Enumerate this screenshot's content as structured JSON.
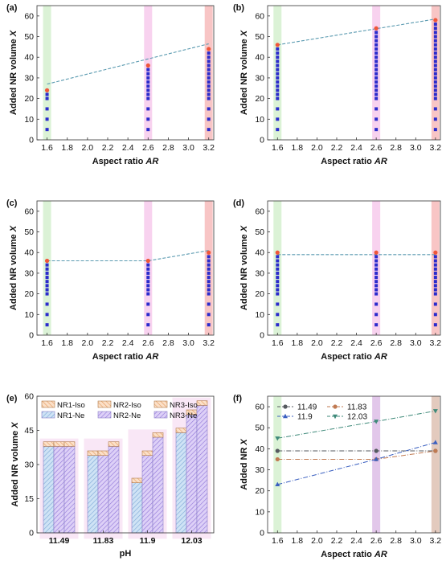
{
  "chart_data": [
    {
      "panel": "(a)",
      "type": "scatter",
      "xlabel": "Aspect ratio ",
      "xlabel_italic": "AR",
      "ylabel": "Added NR volume ",
      "ylabel_italic": "X",
      "xlim": [
        1.5,
        3.25
      ],
      "ylim": [
        0,
        65
      ],
      "xticks": [
        "1.6",
        "1.8",
        "2.0",
        "2.2",
        "2.4",
        "2.6",
        "2.8",
        "3.0",
        "3.2"
      ],
      "yticks": [
        "0",
        "10",
        "20",
        "30",
        "40",
        "50",
        "60"
      ],
      "x_values": [
        1.6,
        2.6,
        3.2
      ],
      "band_colors": [
        "#cfeec8",
        "#f5c3ea",
        "#f6b1b1"
      ],
      "blue_points": [
        {
          "x": 1.6,
          "y": [
            5,
            10,
            15,
            20,
            22
          ]
        },
        {
          "x": 2.6,
          "y": [
            5,
            10,
            15,
            20,
            22,
            24,
            26,
            28,
            30,
            32,
            34
          ]
        },
        {
          "x": 3.2,
          "y": [
            5,
            10,
            15,
            20,
            22,
            24,
            26,
            28,
            30,
            32,
            34,
            36,
            38,
            40,
            42
          ]
        }
      ],
      "marker_points": [
        [
          1.6,
          24
        ],
        [
          2.6,
          36
        ],
        [
          3.2,
          44
        ]
      ],
      "trend_line": [
        [
          1.6,
          27
        ],
        [
          3.2,
          46.5
        ]
      ],
      "colors": {
        "blue": "#2b2bcc",
        "marker": "#f0563a",
        "trend": "#5a9ab0"
      }
    },
    {
      "panel": "(b)",
      "type": "scatter",
      "xlabel": "Aspect ratio ",
      "xlabel_italic": "AR",
      "ylabel": "Added NR volume ",
      "ylabel_italic": "X",
      "xlim": [
        1.5,
        3.25
      ],
      "ylim": [
        0,
        65
      ],
      "xticks": [
        "1.6",
        "1.8",
        "2.0",
        "2.2",
        "2.4",
        "2.6",
        "2.8",
        "3.0",
        "3.2"
      ],
      "yticks": [
        "0",
        "10",
        "20",
        "30",
        "40",
        "50",
        "60"
      ],
      "x_values": [
        1.6,
        2.6,
        3.2
      ],
      "band_colors": [
        "#cfeec8",
        "#f5c3ea",
        "#f6b1b1"
      ],
      "blue_points": [
        {
          "x": 1.6,
          "y": [
            5,
            10,
            15,
            20,
            22,
            24,
            26,
            28,
            30,
            32,
            34,
            36,
            38,
            40,
            42,
            44
          ]
        },
        {
          "x": 2.6,
          "y": [
            5,
            10,
            15,
            20,
            22,
            24,
            26,
            28,
            30,
            32,
            34,
            36,
            38,
            40,
            42,
            44,
            46,
            48,
            50,
            52
          ]
        },
        {
          "x": 3.2,
          "y": [
            5,
            10,
            15,
            20,
            22,
            24,
            26,
            28,
            30,
            32,
            34,
            36,
            38,
            40,
            42,
            44,
            46,
            48,
            50,
            52,
            54,
            56
          ]
        }
      ],
      "marker_points": [
        [
          1.6,
          46
        ],
        [
          2.6,
          54
        ],
        [
          3.2,
          58
        ]
      ],
      "trend_line": [
        [
          1.6,
          46
        ],
        [
          3.2,
          58.5
        ]
      ],
      "colors": {
        "blue": "#2b2bcc",
        "marker": "#f0563a",
        "trend": "#5a9ab0"
      }
    },
    {
      "panel": "(c)",
      "type": "scatter",
      "xlabel": "Aspect ratio ",
      "xlabel_italic": "AR",
      "ylabel": "Added NR volume ",
      "ylabel_italic": "X",
      "xlim": [
        1.5,
        3.25
      ],
      "ylim": [
        0,
        65
      ],
      "xticks": [
        "1.6",
        "1.8",
        "2.0",
        "2.2",
        "2.4",
        "2.6",
        "2.8",
        "3.0",
        "3.2"
      ],
      "yticks": [
        "0",
        "10",
        "20",
        "30",
        "40",
        "50",
        "60"
      ],
      "x_values": [
        1.6,
        2.6,
        3.2
      ],
      "band_colors": [
        "#cfeec8",
        "#f5c3ea",
        "#f6b1b1"
      ],
      "blue_points": [
        {
          "x": 1.6,
          "y": [
            5,
            10,
            15,
            20,
            22,
            24,
            26,
            28,
            30,
            32,
            34
          ]
        },
        {
          "x": 2.6,
          "y": [
            5,
            10,
            15,
            20,
            22,
            24,
            26,
            28,
            30,
            32,
            34
          ]
        },
        {
          "x": 3.2,
          "y": [
            5,
            10,
            15,
            20,
            22,
            24,
            26,
            28,
            30,
            32,
            34,
            36,
            38
          ]
        }
      ],
      "marker_points": [
        [
          1.6,
          36
        ],
        [
          2.6,
          36
        ],
        [
          3.2,
          40
        ]
      ],
      "trend_line": [
        [
          1.6,
          36
        ],
        [
          2.6,
          36
        ],
        [
          3.2,
          41
        ]
      ],
      "colors": {
        "blue": "#2b2bcc",
        "marker": "#f0563a",
        "trend": "#5a9ab0"
      }
    },
    {
      "panel": "(d)",
      "type": "scatter",
      "xlabel": "Aspect ratio ",
      "xlabel_italic": "AR",
      "ylabel": "Added NR volume ",
      "ylabel_italic": "X",
      "xlim": [
        1.5,
        3.25
      ],
      "ylim": [
        0,
        65
      ],
      "xticks": [
        "1.6",
        "1.8",
        "2.0",
        "2.2",
        "2.4",
        "2.6",
        "2.8",
        "3.0",
        "3.2"
      ],
      "yticks": [
        "0",
        "10",
        "20",
        "30",
        "40",
        "50",
        "60"
      ],
      "x_values": [
        1.6,
        2.6,
        3.2
      ],
      "band_colors": [
        "#cfeec8",
        "#f5c3ea",
        "#f6b1b1"
      ],
      "blue_points": [
        {
          "x": 1.6,
          "y": [
            5,
            10,
            15,
            20,
            22,
            24,
            26,
            28,
            30,
            32,
            34,
            36,
            38
          ]
        },
        {
          "x": 2.6,
          "y": [
            5,
            10,
            15,
            20,
            22,
            24,
            26,
            28,
            30,
            32,
            34,
            36,
            38
          ]
        },
        {
          "x": 3.2,
          "y": [
            5,
            10,
            15,
            20,
            22,
            24,
            26,
            28,
            30,
            32,
            34,
            36,
            38
          ]
        }
      ],
      "marker_points": [
        [
          1.6,
          40
        ],
        [
          2.6,
          40
        ],
        [
          3.2,
          40
        ]
      ],
      "trend_line": [
        [
          1.6,
          39
        ],
        [
          3.2,
          39
        ]
      ],
      "colors": {
        "blue": "#2b2bcc",
        "marker": "#f0563a",
        "trend": "#5a9ab0"
      }
    },
    {
      "panel": "(e)",
      "type": "bar",
      "xlabel": "pH",
      "ylabel": "Added NR volume ",
      "ylabel_italic": "X",
      "ylim": [
        0,
        60
      ],
      "yticks": [
        "0",
        "15",
        "30",
        "45",
        "60"
      ],
      "categories": [
        "11.49",
        "11.83",
        "11.9",
        "12.03"
      ],
      "series": [
        {
          "name": "NR1-Ne",
          "values": [
            38,
            34,
            22,
            44
          ],
          "color": "#b7d7f0",
          "pattern": "hatch-blue"
        },
        {
          "name": "NR1-Iso",
          "values": [
            2,
            2,
            2,
            2
          ],
          "color": "#f7c7a0",
          "pattern": "hatch-orange"
        },
        {
          "name": "NR2-Ne",
          "values": [
            38,
            34,
            34,
            52
          ],
          "color": "#c9b8f2",
          "pattern": "hatch-purple"
        },
        {
          "name": "NR2-Iso",
          "values": [
            2,
            2,
            2,
            2
          ],
          "color": "#f7c7a0",
          "pattern": "hatch-orange"
        },
        {
          "name": "NR3-Ne",
          "values": [
            38,
            38,
            42,
            56
          ],
          "color": "#c9b8f2",
          "pattern": "hatch-purple"
        },
        {
          "name": "NR3-Iso",
          "values": [
            2,
            2,
            2,
            2
          ],
          "color": "#f7c7a0",
          "pattern": "hatch-orange"
        }
      ],
      "legend_top": [
        "NR1-Iso",
        "NR2-Iso",
        "NR3-Iso"
      ],
      "legend_bottom": [
        "NR1-Ne",
        "NR2-Ne",
        "NR3-Ne"
      ],
      "band_color": "#f2c9ec"
    },
    {
      "panel": "(f)",
      "type": "line",
      "xlabel": "Aspect ratio ",
      "xlabel_italic": "AR",
      "ylabel": "Added NR ",
      "ylabel_italic": "X",
      "xlim": [
        1.5,
        3.25
      ],
      "ylim": [
        0,
        65
      ],
      "xticks": [
        "1.6",
        "1.8",
        "2.0",
        "2.2",
        "2.4",
        "2.6",
        "2.8",
        "3.0",
        "3.2"
      ],
      "yticks": [
        "0",
        "10",
        "20",
        "30",
        "40",
        "50",
        "60"
      ],
      "x": [
        1.6,
        2.6,
        3.2
      ],
      "band_colors": [
        "#cfeec8",
        "#d8b4e3",
        "#d9b8a8"
      ],
      "series": [
        {
          "name": "11.49",
          "values": [
            39,
            39,
            39
          ],
          "color": "#555a5f",
          "marker": "circle"
        },
        {
          "name": "11.83",
          "values": [
            35,
            35,
            39
          ],
          "color": "#c07a52",
          "marker": "circle"
        },
        {
          "name": "11.9",
          "values": [
            23,
            35,
            43
          ],
          "color": "#3a5fc0",
          "marker": "triangle-up"
        },
        {
          "name": "12.03",
          "values": [
            45,
            53,
            58
          ],
          "color": "#3f8a7a",
          "marker": "triangle-down"
        }
      ]
    }
  ]
}
